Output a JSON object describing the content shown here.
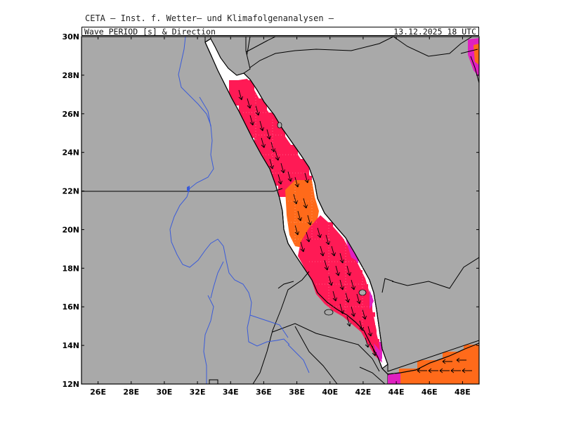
{
  "header": {
    "institution": "CETA — Inst. f. Wetter— und Klimafolgenanalysen —",
    "variable_title": "Wave_PERIOD_[s]_&_Direction",
    "valid_time": "13.12.2025 18 UTC"
  },
  "map": {
    "lon_range": [
      25,
      49
    ],
    "lat_range": [
      12,
      30
    ],
    "lon_ticks": [
      26,
      28,
      30,
      32,
      34,
      36,
      38,
      40,
      42,
      44,
      46,
      48
    ],
    "lat_ticks": [
      12,
      14,
      16,
      18,
      20,
      22,
      24,
      26,
      28,
      30
    ],
    "lon_tick_labels": [
      "26E",
      "28E",
      "30E",
      "32E",
      "34E",
      "36E",
      "38E",
      "40E",
      "42E",
      "44E",
      "46E",
      "48E"
    ],
    "lat_tick_labels": [
      "12N",
      "14N",
      "16N",
      "18N",
      "20N",
      "22N",
      "24N",
      "26N",
      "28N",
      "30N"
    ],
    "colors": {
      "land": "#a9a9a9",
      "sea_no_data": "#ffffff",
      "period_high": "#ff1a55",
      "period_mid": "#ff6a1a",
      "period_edge": "#e020c0",
      "arrow": "#000000",
      "rivers": "#3a5bd9",
      "borders": "#000000"
    }
  }
}
